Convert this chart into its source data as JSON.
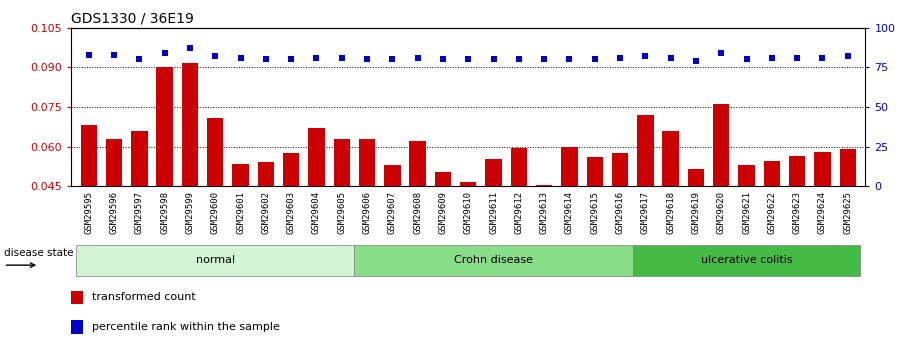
{
  "title": "GDS1330 / 36E19",
  "samples": [
    "GSM29595",
    "GSM29596",
    "GSM29597",
    "GSM29598",
    "GSM29599",
    "GSM29600",
    "GSM29601",
    "GSM29602",
    "GSM29603",
    "GSM29604",
    "GSM29605",
    "GSM29606",
    "GSM29607",
    "GSM29608",
    "GSM29609",
    "GSM29610",
    "GSM29611",
    "GSM29612",
    "GSM29613",
    "GSM29614",
    "GSM29615",
    "GSM29616",
    "GSM29617",
    "GSM29618",
    "GSM29619",
    "GSM29620",
    "GSM29621",
    "GSM29622",
    "GSM29623",
    "GSM29624",
    "GSM29625"
  ],
  "red_values": [
    0.068,
    0.063,
    0.066,
    0.09,
    0.0915,
    0.071,
    0.0535,
    0.054,
    0.0575,
    0.067,
    0.063,
    0.063,
    0.053,
    0.062,
    0.0505,
    0.0468,
    0.0555,
    0.0595,
    0.0455,
    0.06,
    0.056,
    0.0575,
    0.072,
    0.066,
    0.0515,
    0.076,
    0.053,
    0.0545,
    0.0565,
    0.058,
    0.059
  ],
  "blue_values": [
    83,
    83,
    80,
    84,
    87,
    82,
    81,
    80,
    80,
    81,
    81,
    80,
    80,
    81,
    80,
    80,
    80,
    80,
    80,
    80,
    80,
    81,
    82,
    81,
    79,
    84,
    80,
    81,
    81,
    81,
    82
  ],
  "ylim_left": [
    0.045,
    0.105
  ],
  "ylim_right": [
    0,
    100
  ],
  "yticks_left": [
    0.045,
    0.06,
    0.075,
    0.09,
    0.105
  ],
  "yticks_right": [
    0,
    25,
    50,
    75,
    100
  ],
  "bar_color": "#cc0000",
  "square_color": "#0000cc",
  "groups": [
    {
      "label": "normal",
      "start": 0,
      "end": 10,
      "color": "#d4f5d4"
    },
    {
      "label": "Crohn disease",
      "start": 11,
      "end": 21,
      "color": "#88dd88"
    },
    {
      "label": "ulcerative colitis",
      "start": 22,
      "end": 30,
      "color": "#44bb44"
    }
  ],
  "group_header": "disease state",
  "legend_items": [
    {
      "label": "transformed count",
      "color": "#cc0000"
    },
    {
      "label": "percentile rank within the sample",
      "color": "#0000cc"
    }
  ],
  "dotted_yticks": [
    0.06,
    0.075,
    0.09,
    0.105
  ],
  "xticklabel_bg": "#c8c8c8",
  "title_fontsize": 10,
  "tick_fontsize": 6.5,
  "bar_width": 0.65
}
